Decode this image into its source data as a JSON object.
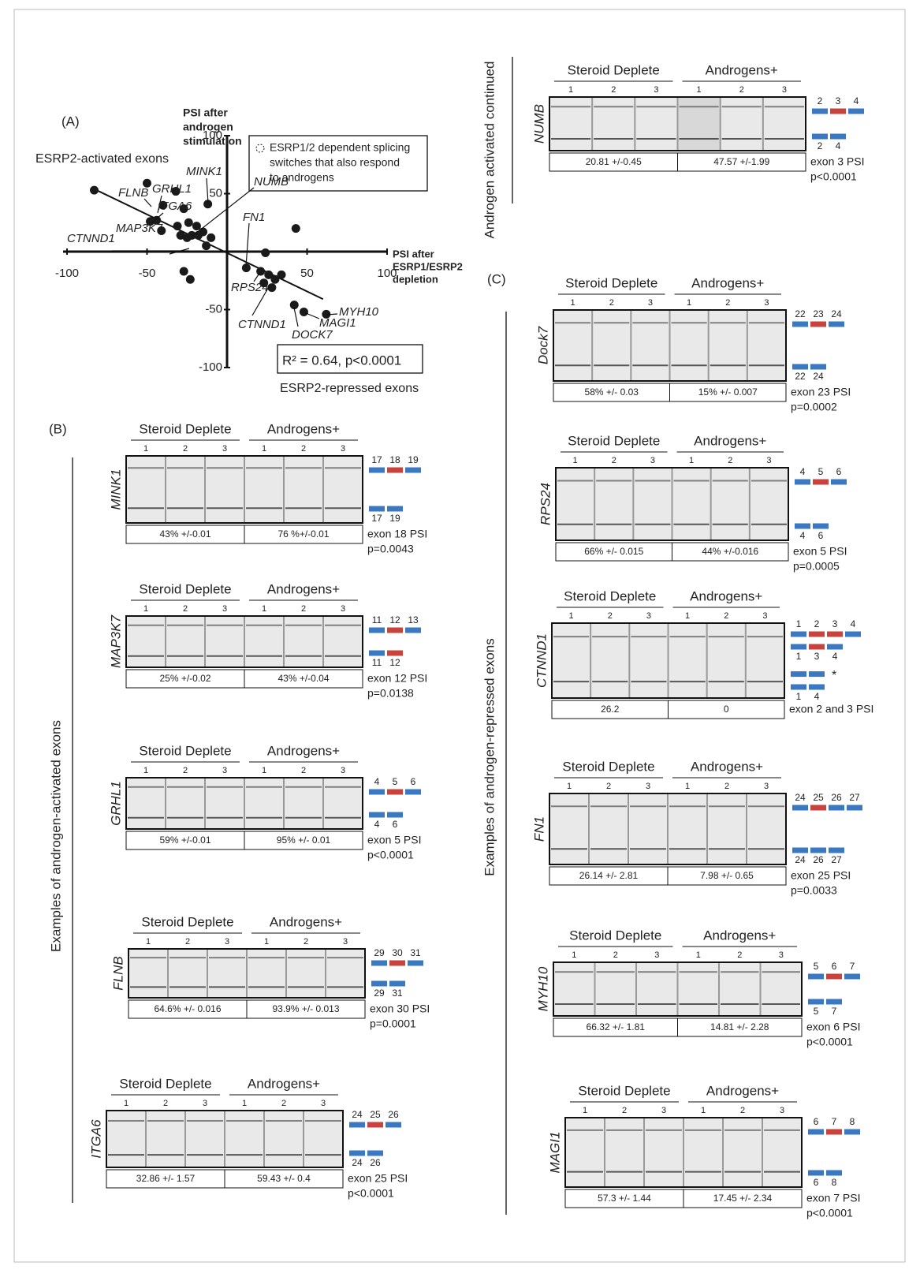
{
  "chart_data": {
    "type": "scatter",
    "x": [
      -83,
      -50,
      -32,
      -12,
      -40,
      -27,
      -48,
      -44,
      -41,
      -31,
      -24,
      -19,
      -29,
      -25,
      -22,
      -18,
      -15,
      -10,
      -13,
      -27,
      -23,
      43,
      24,
      12,
      21,
      26,
      30,
      28,
      23,
      34,
      42,
      48,
      62
    ],
    "values": [
      53,
      59,
      52,
      41,
      40,
      37,
      26,
      27,
      18,
      22,
      25,
      22,
      14,
      12,
      14,
      14,
      17,
      12,
      5,
      -17,
      -24,
      20,
      -1,
      -14,
      -17,
      -20,
      -24,
      -31,
      -27,
      -20,
      -46,
      -52,
      -54
    ],
    "color": "#1a1a1a",
    "trend": {
      "x": [
        -83,
        60
      ],
      "y": [
        54,
        -41
      ]
    },
    "xlim": [
      -100,
      100
    ],
    "ylim": [
      -100,
      100
    ],
    "xticks": [
      -100,
      -50,
      50,
      100
    ],
    "yticks": [
      100,
      50,
      -50,
      -100
    ],
    "xlabel": [
      "PSI after",
      "ESRP1/ESRP2",
      "depletion"
    ],
    "ylabel": [
      "PSI after",
      "androgen",
      "stimulation"
    ],
    "region_labels": [
      "ESRP2-activated exons",
      "ESRP2-repressed exons"
    ],
    "legend": [
      "ESRP1/2 dependent splicing",
      "switches that also respond",
      "to androgens"
    ],
    "stat_label": "R² = 0.64, p<0.0001",
    "annotations": [
      "FLNB",
      "GRHL1",
      "ITGA6",
      "MINK1",
      "NUMB",
      "FN1",
      "CTNND1",
      "MAP3K7",
      "RPS24",
      "CTNND1",
      "DOCK7",
      "MAGI1",
      "MYH10"
    ]
  },
  "panel_labels": [
    "(A)",
    "(B)",
    "(C)"
  ],
  "side_labels": [
    "Androgen activated continued",
    "Examples of androgen-activated exons",
    "Examples of androgen-repressed exons"
  ],
  "group_labels": [
    "Steroid Deplete",
    "Androgens+"
  ],
  "lane_numbers": [
    "1",
    "2",
    "3"
  ],
  "exon_color": "#3b78c2",
  "alt_color": "#c8433d",
  "gels": [
    {
      "gene": "NUMB",
      "psi": [
        "20.81 +/-0.45",
        "47.57 +/-1.99"
      ],
      "exon_rows": [
        [
          "2",
          "3",
          "4"
        ],
        [
          "2",
          "4"
        ]
      ],
      "alt": [
        "3"
      ],
      "psi_label": "exon 3 PSI",
      "p_value": "p<0.0001"
    },
    {
      "gene": "MINK1",
      "psi": [
        "43% +/-0.01",
        "76 %+/-0.01"
      ],
      "exon_rows": [
        [
          "17",
          "18",
          "19"
        ],
        [
          "17",
          "19"
        ]
      ],
      "alt": [
        "18"
      ],
      "psi_label": "exon 18 PSI",
      "p_value": "p=0.0043"
    },
    {
      "gene": "MAP3K7",
      "psi": [
        "25% +/-0.02",
        "43% +/-0.04"
      ],
      "exon_rows": [
        [
          "11",
          "12",
          "13"
        ],
        [
          "11",
          "12"
        ]
      ],
      "alt": [
        "12"
      ],
      "psi_label": "exon 12  PSI",
      "p_value": "p=0.0138"
    },
    {
      "gene": "GRHL1",
      "psi": [
        "59% +/-0.01",
        "95% +/- 0.01"
      ],
      "exon_rows": [
        [
          "4",
          "5",
          "6"
        ],
        [
          "4",
          "6"
        ]
      ],
      "alt": [
        "5"
      ],
      "psi_label": "exon 5 PSI",
      "p_value": "p<0.0001"
    },
    {
      "gene": "FLNB",
      "psi": [
        "64.6% +/- 0.016",
        "93.9% +/- 0.013"
      ],
      "exon_rows": [
        [
          "29",
          "30",
          "31"
        ],
        [
          "29",
          "31"
        ]
      ],
      "alt": [
        "30"
      ],
      "psi_label": "exon 30 PSI",
      "p_value": "p=0.0001"
    },
    {
      "gene": "ITGA6",
      "psi": [
        "32.86 +/- 1.57",
        "59.43 +/- 0.4"
      ],
      "exon_rows": [
        [
          "24",
          "25",
          "26"
        ],
        [
          "24",
          "26"
        ]
      ],
      "alt": [
        "25"
      ],
      "psi_label": "exon 25 PSI",
      "p_value": "p<0.0001"
    },
    {
      "gene": "Dock7",
      "psi": [
        "58% +/- 0.03",
        "15% +/- 0.007"
      ],
      "exon_rows": [
        [
          "22",
          "23",
          "24"
        ],
        [
          "22",
          "24"
        ]
      ],
      "alt": [
        "23"
      ],
      "psi_label": "exon 23 PSI",
      "p_value": "p=0.0002"
    },
    {
      "gene": "RPS24",
      "psi": [
        "66% +/- 0.015",
        "44% +/-0.016"
      ],
      "exon_rows": [
        [
          "4",
          "5",
          "6"
        ],
        [
          "4",
          "6"
        ]
      ],
      "alt": [
        "5"
      ],
      "psi_label": "exon 5 PSI",
      "p_value": "p=0.0005"
    },
    {
      "gene": "CTNND1",
      "psi": [
        "26.2",
        "0"
      ],
      "exon_rows": [
        [
          "1",
          "2",
          "3",
          "4"
        ],
        [
          "1",
          "3",
          "4"
        ],
        [
          "1",
          "4"
        ]
      ],
      "alt": [
        "2",
        "3"
      ],
      "asterisk": "*",
      "psi_label": "exon 2 and 3 PSI"
    },
    {
      "gene": "FN1",
      "psi": [
        "26.14 +/- 2.81",
        "7.98 +/- 0.65"
      ],
      "exon_rows": [
        [
          "24",
          "25",
          "26",
          "27"
        ],
        [
          "24",
          "26",
          "27"
        ]
      ],
      "alt": [
        "25"
      ],
      "psi_label": "exon 25 PSI",
      "p_value": "p=0.0033"
    },
    {
      "gene": "MYH10",
      "psi": [
        "66.32 +/- 1.81",
        "14.81 +/- 2.28"
      ],
      "exon_rows": [
        [
          "5",
          "6",
          "7"
        ],
        [
          "5",
          "7"
        ]
      ],
      "alt": [
        "6"
      ],
      "psi_label": "exon 6 PSI",
      "p_value": "p<0.0001"
    },
    {
      "gene": "MAGI1",
      "psi": [
        "57.3 +/- 1.44",
        "17.45 +/- 2.34"
      ],
      "exon_rows": [
        [
          "6",
          "7",
          "8"
        ],
        [
          "6",
          "8"
        ]
      ],
      "alt": [
        "7"
      ],
      "psi_label": "exon 7 PSI",
      "p_value": "p<0.0001"
    }
  ]
}
